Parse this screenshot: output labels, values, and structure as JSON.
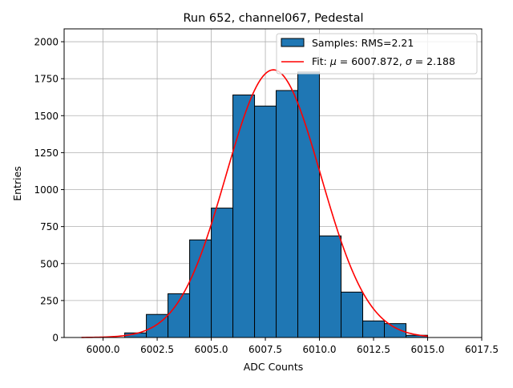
{
  "chart_data": {
    "type": "bar",
    "title": "Run 652, channel067, Pedestal",
    "xlabel": "ADC Counts",
    "ylabel": "Entries",
    "xlim": [
      5998.2,
      6017.5
    ],
    "ylim": [
      0,
      2087
    ],
    "grid": true,
    "legend_position": "top-right",
    "xticks": [
      6000.0,
      6002.5,
      6005.0,
      6007.5,
      6010.0,
      6012.5,
      6015.0,
      6017.5
    ],
    "xtick_labels": [
      "6000.0",
      "6002.5",
      "6005.0",
      "6007.5",
      "6010.0",
      "6012.5",
      "6015.0",
      "6017.5"
    ],
    "yticks": [
      0,
      250,
      500,
      750,
      1000,
      1250,
      1500,
      1750,
      2000
    ],
    "ytick_labels": [
      "0",
      "250",
      "500",
      "750",
      "1000",
      "1250",
      "1500",
      "1750",
      "2000"
    ],
    "histogram": {
      "name": "Samples: RMS=2.21",
      "color": "#1f77b4",
      "bin_edges": [
        6001,
        6002,
        6003,
        6004,
        6005,
        6006,
        6007,
        6008,
        6009,
        6010,
        6011,
        6012,
        6013,
        6014,
        6015
      ],
      "values": [
        31,
        156,
        296,
        660,
        875,
        1640,
        1565,
        1670,
        1795,
        687,
        307,
        112,
        94,
        15
      ]
    },
    "fit": {
      "name_prefix": "Fit: ",
      "name_mu": "μ",
      "name_mid": " = 6007.872, ",
      "name_sigma": "σ",
      "name_end": " = 2.188",
      "color": "#ff0000",
      "mu": 6007.872,
      "sigma": 2.188,
      "amplitude": 1810,
      "x_range": [
        5999.0,
        6015.0
      ]
    }
  }
}
